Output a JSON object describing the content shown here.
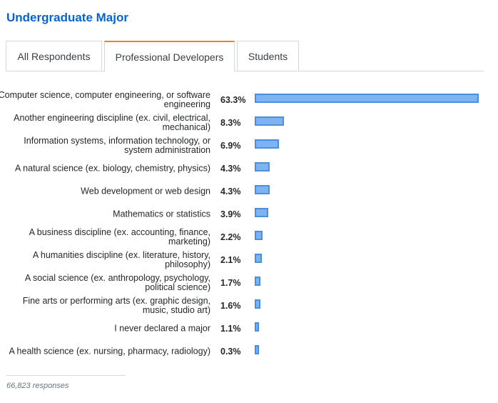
{
  "title": "Undergraduate Major",
  "tabs": [
    {
      "label": "All Respondents",
      "active": false
    },
    {
      "label": "Professional Developers",
      "active": true
    },
    {
      "label": "Students",
      "active": false
    }
  ],
  "colors": {
    "title": "#0a64c8",
    "active_tab_accent": "#f48024",
    "bar_fill": "#7eb3f2",
    "bar_border": "#4a8fe0"
  },
  "chart_data": {
    "type": "bar",
    "orientation": "horizontal",
    "categories": [
      "Computer science, computer engineering, or software engineering",
      "Another engineering discipline (ex. civil, electrical, mechanical)",
      "Information systems, information technology, or system administration",
      "A natural science (ex. biology, chemistry, physics)",
      "Web development or web design",
      "Mathematics or statistics",
      "A business discipline (ex. accounting, finance, marketing)",
      "A humanities discipline (ex. literature, history, philosophy)",
      "A social science (ex. anthropology, psychology, political science)",
      "Fine arts or performing arts (ex. graphic design, music, studio art)",
      "I never declared a major",
      "A health science (ex. nursing, pharmacy, radiology)"
    ],
    "values": [
      63.3,
      8.3,
      6.9,
      4.3,
      4.3,
      3.9,
      2.2,
      2.1,
      1.7,
      1.6,
      1.1,
      0.3
    ],
    "value_labels": [
      "63.3%",
      "8.3%",
      "6.9%",
      "4.3%",
      "4.3%",
      "3.9%",
      "2.2%",
      "2.1%",
      "1.7%",
      "1.6%",
      "1.1%",
      "0.3%"
    ],
    "grid": false,
    "legend": "none"
  },
  "footer": {
    "responses": "66,823 responses"
  }
}
